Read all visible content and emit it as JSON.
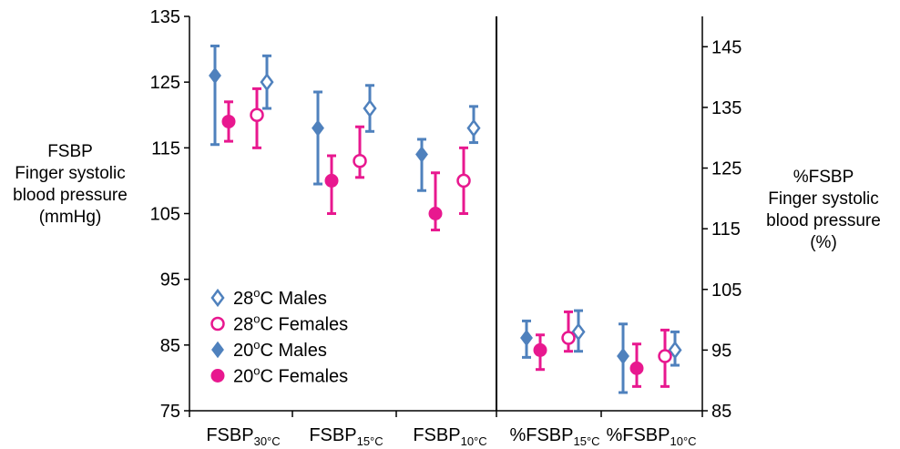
{
  "chart_data": {
    "type": "scatter",
    "categories": [
      {
        "main": "FSBP",
        "sub": "30°C",
        "axis": "left"
      },
      {
        "main": "FSBP",
        "sub": "15°C",
        "axis": "left"
      },
      {
        "main": "FSBP",
        "sub": "10°C",
        "axis": "left"
      },
      {
        "main": "%FSBP",
        "sub": "15°C",
        "axis": "right"
      },
      {
        "main": "%FSBP",
        "sub": "10°C",
        "axis": "right"
      }
    ],
    "left_axis": {
      "ylim": [
        75,
        135
      ],
      "ticks": [
        "135",
        "125",
        "115",
        "105",
        "95",
        "85",
        "75"
      ],
      "label_lines": [
        "FSBP",
        "Finger systolic",
        "blood pressure",
        "(mmHg)"
      ]
    },
    "right_axis": {
      "ylim": [
        85,
        150
      ],
      "ticks": [
        "145",
        "135",
        "125",
        "115",
        "105",
        "95",
        "85"
      ],
      "label_lines": [
        "%FSBP",
        "Finger systolic",
        "blood pressure",
        "(%)"
      ]
    },
    "series": [
      {
        "name": "28°C Males",
        "temp": "28",
        "label_rest": "C Males",
        "color": "#4f81bd",
        "marker": "diamond",
        "filled": false,
        "values": [
          125,
          121,
          118,
          98,
          95
        ],
        "err_low": [
          121,
          117.5,
          115.8,
          94.8,
          92.5
        ],
        "err_high": [
          129,
          124.5,
          121.3,
          101.5,
          98
        ]
      },
      {
        "name": "28°C Females",
        "temp": "28",
        "label_rest": "C Females",
        "color": "#e8188f",
        "marker": "circle",
        "filled": false,
        "values": [
          120,
          113,
          110,
          97,
          94
        ],
        "err_low": [
          115,
          110.5,
          105,
          94.8,
          89
        ],
        "err_high": [
          124,
          118.2,
          115,
          101.3,
          98.3
        ]
      },
      {
        "name": "20°C Males",
        "temp": "20",
        "label_rest": "C Males",
        "color": "#4f81bd",
        "marker": "diamond",
        "filled": true,
        "values": [
          126,
          118,
          114,
          97,
          94
        ],
        "err_low": [
          115.5,
          109.5,
          108.5,
          93.8,
          88
        ],
        "err_high": [
          130.5,
          123.5,
          116.3,
          99.8,
          99.3
        ]
      },
      {
        "name": "20°C Females",
        "temp": "20",
        "label_rest": "C Females",
        "color": "#e8188f",
        "marker": "circle",
        "filled": true,
        "values": [
          119,
          110,
          105,
          95,
          92
        ],
        "err_low": [
          116,
          105,
          102.5,
          91.8,
          89
        ],
        "err_high": [
          122,
          113.8,
          111.2,
          97.5,
          96
        ]
      }
    ],
    "legend_position": "bottom-left",
    "grid": false
  }
}
